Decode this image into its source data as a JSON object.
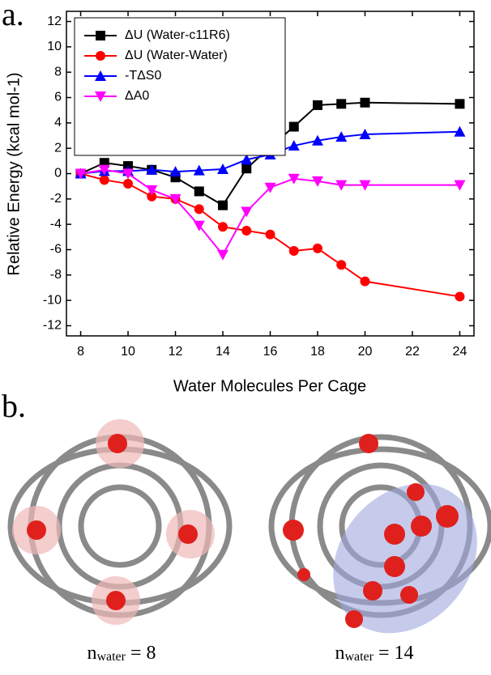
{
  "panel_labels": [
    "a.",
    "b."
  ],
  "chart_data": {
    "type": "line",
    "x_label": "Water Molecules Per Cage",
    "y_label": "Relative Energy  (kcal mol-1)",
    "x": [
      8,
      9,
      10,
      11,
      12,
      13,
      14,
      15,
      16,
      17,
      18,
      19,
      20,
      24
    ],
    "series": [
      {
        "name": "ΔU (Water-c11R6)",
        "color": "#000000",
        "marker": "square",
        "values": [
          0,
          0.85,
          0.6,
          0.3,
          -0.3,
          -1.4,
          -2.5,
          0.4,
          2.1,
          3.7,
          5.4,
          5.5,
          5.6,
          5.5
        ]
      },
      {
        "name": "ΔU (Water-Water)",
        "color": "#ff0000",
        "marker": "circle",
        "values": [
          0,
          -0.5,
          -0.8,
          -1.8,
          -2.0,
          -2.8,
          -4.2,
          -4.5,
          -4.8,
          -6.1,
          -5.9,
          -7.2,
          -8.5,
          -9.7
        ]
      },
      {
        "name": "-TΔS0",
        "color": "#0000ff",
        "marker": "triangle",
        "values": [
          0,
          0.2,
          0.2,
          0.3,
          0.15,
          0.25,
          0.35,
          1.1,
          1.5,
          2.2,
          2.6,
          2.9,
          3.1,
          3.3
        ]
      },
      {
        "name": "ΔA0",
        "color": "#ff00ff",
        "marker": "triangle-down",
        "values": [
          0,
          0.3,
          0.0,
          -1.3,
          -2.0,
          -4.1,
          -6.4,
          -3.0,
          -1.1,
          -0.4,
          -0.6,
          -0.9,
          -0.9,
          -0.9
        ]
      }
    ],
    "xlim": [
      7.4,
      24.6
    ],
    "xticks": [
      8,
      10,
      12,
      14,
      16,
      18,
      20,
      22,
      24
    ],
    "ylim": [
      -12.8,
      12.8
    ],
    "yticks": [
      -12,
      -10,
      -8,
      -6,
      -4,
      -2,
      0,
      2,
      4,
      6,
      8,
      10,
      12
    ],
    "legend": "upper left"
  },
  "captions": [
    {
      "base": "n",
      "sub": "water",
      "rest": " = 8"
    },
    {
      "base": "n",
      "sub": "water",
      "rest": " = 14"
    }
  ]
}
